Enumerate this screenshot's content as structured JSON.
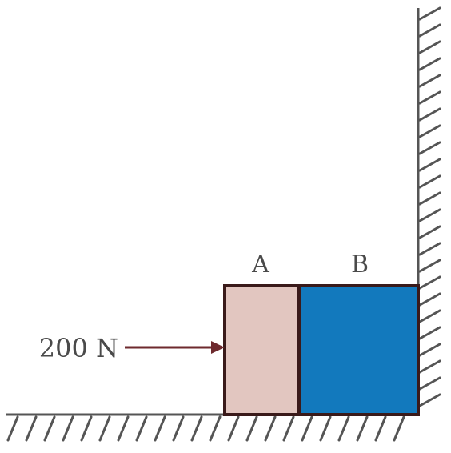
{
  "diagram": {
    "blocks": {
      "a": {
        "label": "A",
        "fill": "#e2c6c0"
      },
      "b": {
        "label": "B",
        "fill": "#1279bd"
      }
    },
    "force": {
      "label": "200 N",
      "color": "#6e2a2e"
    },
    "surfaces": {
      "hatch_color": "#555555"
    },
    "outline_color": "#3a1a1a"
  }
}
